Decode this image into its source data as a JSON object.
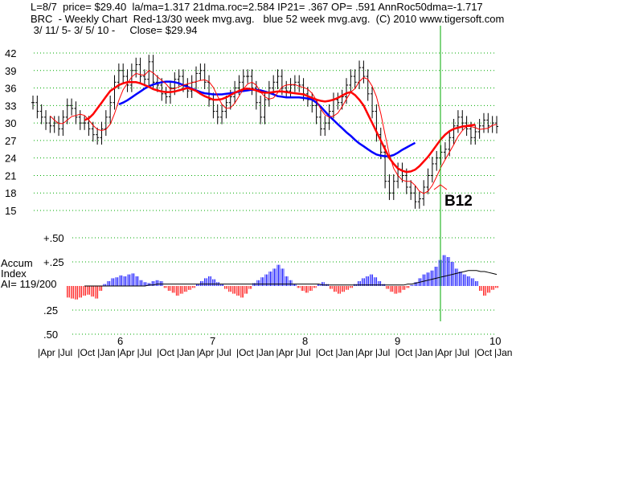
{
  "header": {
    "line1": "L=8/7  price= $29.40  la/ma=1.317 21dma.roc=2.584 IP21= .367 OP= .591 AnnRoc50dma=-1.717",
    "line2": "BRC  - Weekly Chart  Red-13/30 week mvg.avg.   blue 52 week mvg.avg.  (C) 2010 www.tigersoft.com",
    "line3": " 3/ 11/ 5- 3/ 5/ 10 -     Close= $29.94"
  },
  "accum_label": [
    "Accum",
    "Index",
    "AI= 119/200"
  ],
  "signal_label": "B12",
  "colors": {
    "price": "#000000",
    "ma_red": "#ff0000",
    "ma_blue": "#0000ff",
    "accum_pos": "#0000ff",
    "accum_neg": "#ff0000",
    "grid": "#00aa00",
    "signal_line": "#00aa00"
  },
  "chart_data": [
    {
      "type": "candlestick",
      "title": "BRC - Weekly Chart",
      "ylim": [
        14,
        44
      ],
      "yticks": [
        42,
        39,
        36,
        33,
        30,
        27,
        24,
        21,
        18,
        15
      ],
      "grid": true,
      "x_years": [
        "6",
        "7",
        "8",
        "9",
        "10"
      ],
      "x_months": [
        "Apr",
        "Jul",
        "Oct",
        "Jan",
        "Apr",
        "Jul",
        "Oct",
        "Jan",
        "Apr",
        "Jul",
        "Oct",
        "Jan",
        "Apr",
        "Jul",
        "Oct",
        "Jan",
        "Apr",
        "Jul",
        "Oct",
        "Jan",
        "Apr",
        "Jul",
        "Oct",
        "Jan"
      ],
      "price_closes": [
        33.5,
        32,
        31,
        30,
        29.5,
        30,
        29,
        31,
        33,
        32.5,
        31,
        30,
        30,
        29,
        28,
        27.5,
        29,
        31,
        33.5,
        37,
        39,
        38,
        36.5,
        39,
        40,
        38,
        37.5,
        40.5,
        37,
        36.5,
        35,
        34.5,
        36,
        37.5,
        38,
        36.5,
        35.5,
        37,
        38.5,
        39,
        37,
        34,
        32,
        31,
        32,
        33.5,
        34.5,
        36,
        37,
        38,
        38,
        36,
        33.5,
        31,
        34,
        36,
        37,
        38,
        36,
        35.5,
        36.5,
        37,
        36.5,
        35,
        34,
        33,
        31,
        29,
        30,
        32,
        34,
        33.5,
        34.5,
        36.5,
        38,
        37,
        39.5,
        38,
        35,
        32,
        28,
        25,
        20,
        18,
        20,
        22,
        21,
        19,
        18,
        16.5,
        17,
        19,
        21,
        23,
        24,
        25,
        25.5,
        27.5,
        29.5,
        31,
        30,
        29,
        27.5,
        28.5,
        29.5,
        30.5,
        29.5,
        30,
        29.4
      ],
      "ma_red": [
        null,
        null,
        null,
        null,
        null,
        null,
        null,
        null,
        null,
        null,
        null,
        null,
        30.5,
        30.8,
        31.5,
        32.5,
        33.5,
        34.5,
        35.5,
        36,
        36.5,
        36.8,
        37,
        37,
        37,
        36.8,
        36.5,
        36.2,
        35.8,
        35.6,
        35.4,
        35.3,
        35.3,
        35.4,
        35.6,
        35.8,
        36,
        35.8,
        35.5,
        35,
        34.6,
        34.3,
        34,
        34,
        34.1,
        34.4,
        34.8,
        35.2,
        35.5,
        35.8,
        35.9,
        35.8,
        35.6,
        35.3,
        35.2,
        35.2,
        35.3,
        35.4,
        35.4,
        35.3,
        35.2,
        35.1,
        35,
        34.9,
        34.6,
        34.3,
        34,
        33.8,
        33.7,
        33.8,
        34,
        34.3,
        34.7,
        35.1,
        35.3,
        34.8,
        34,
        33,
        31.5,
        30,
        28.5,
        27,
        25.5,
        24,
        23,
        22.2,
        21.8,
        21.6,
        21.7,
        22,
        22.6,
        23.4,
        24.2,
        25.2,
        26.2,
        27.2,
        28,
        28.6,
        29,
        29.2,
        29.4,
        29.5,
        29.6,
        29.7
      ],
      "ma_blue": [
        null,
        null,
        null,
        null,
        null,
        null,
        null,
        null,
        null,
        null,
        null,
        null,
        null,
        null,
        null,
        null,
        null,
        null,
        null,
        null,
        33.2,
        33.5,
        33.9,
        34.4,
        34.9,
        35.4,
        35.9,
        36.3,
        36.6,
        36.8,
        37,
        37.1,
        37.1,
        37,
        36.8,
        36.5,
        36.2,
        35.9,
        35.6,
        35.3,
        35.1,
        35,
        34.9,
        34.9,
        34.9,
        35,
        35.1,
        35.2,
        35.4,
        35.5,
        35.6,
        35.7,
        35.7,
        35.6,
        35.4,
        35.2,
        34.9,
        34.6,
        34.5,
        34.4,
        34.4,
        34.4,
        34.4,
        34.3,
        34.2,
        34,
        33.5,
        32.8,
        32,
        31.2,
        30.5,
        29.8,
        29.1,
        28.4,
        27.8,
        27.1,
        26.5,
        26,
        25.5,
        25,
        24.6,
        24.4,
        24.3,
        24.3,
        24.5,
        24.9,
        25.4,
        25.8,
        26.2,
        26.6
      ],
      "signal_annotation": "B12"
    },
    {
      "type": "bar",
      "title": "Accum Index",
      "ylim": [
        -0.5,
        0.5
      ],
      "yticks": [
        "+.50",
        "+.25",
        ".25",
        ".50"
      ],
      "ai": "119/200",
      "values": [
        -0.12,
        -0.13,
        -0.14,
        -0.12,
        -0.1,
        -0.09,
        -0.11,
        -0.13,
        -0.05,
        0.02,
        0.05,
        0.08,
        0.09,
        0.11,
        0.1,
        0.12,
        0.13,
        0.1,
        0.06,
        0.04,
        0.03,
        0.05,
        0.06,
        0.05,
        -0.02,
        -0.05,
        -0.07,
        -0.1,
        -0.08,
        -0.06,
        -0.04,
        -0.02,
        0.02,
        0.05,
        0.08,
        0.1,
        0.07,
        0.04,
        0.02,
        -0.03,
        -0.06,
        -0.08,
        -0.1,
        -0.12,
        -0.08,
        -0.03,
        0.03,
        0.06,
        0.09,
        0.12,
        0.15,
        0.18,
        0.22,
        0.18,
        0.1,
        0.06,
        0.02,
        -0.02,
        -0.05,
        -0.07,
        -0.05,
        -0.02,
        0.02,
        0.04,
        0.02,
        -0.03,
        -0.06,
        -0.08,
        -0.06,
        -0.04,
        -0.02,
        0.02,
        0.05,
        0.08,
        0.1,
        0.12,
        0.09,
        0.05,
        0.02,
        -0.03,
        -0.06,
        -0.08,
        -0.07,
        -0.04,
        -0.02,
        0.01,
        0.04,
        0.08,
        0.12,
        0.14,
        0.16,
        0.2,
        0.27,
        0.32,
        0.3,
        0.25,
        0.18,
        0.15,
        0.12,
        0.1,
        0.08,
        0.05,
        -0.05,
        -0.1,
        -0.07,
        -0.04,
        -0.02
      ],
      "ma_line": [
        0.0,
        0.0,
        0.0,
        0.0,
        0.0,
        0.0,
        0.0,
        0.0,
        0.0,
        0.0,
        0.0,
        0.0,
        0.0,
        0.0,
        0.0,
        0.0,
        0.01,
        0.01,
        0.02,
        0.02,
        0.02,
        0.02,
        0.02,
        0.02,
        0.02,
        0.02,
        0.02,
        0.02,
        0.02,
        0.02,
        0.02,
        0.02,
        0.02,
        0.02,
        0.02,
        0.02,
        0.02,
        0.02,
        0.02,
        0.02,
        0.02,
        0.02,
        0.02,
        0.02,
        0.02,
        0.02,
        0.02,
        0.02,
        0.02,
        0.02,
        0.02,
        0.02,
        0.02,
        0.02,
        0.02,
        0.02,
        0.02,
        0.02,
        0.02,
        0.01,
        0.01,
        0.01,
        0.01,
        0.01,
        0.01,
        0.01,
        0.01,
        0.01,
        0.01,
        0.01,
        0.01,
        0.01,
        0.01,
        0.01,
        0.01,
        0.01,
        0.01,
        0.01,
        0.01,
        0.01,
        0.02,
        0.02,
        0.03,
        0.04,
        0.05,
        0.06,
        0.07,
        0.08,
        0.09,
        0.1,
        0.11,
        0.12,
        0.13,
        0.14,
        0.15,
        0.16,
        0.16,
        0.16,
        0.15,
        0.15,
        0.14,
        0.13,
        0.12
      ]
    }
  ]
}
